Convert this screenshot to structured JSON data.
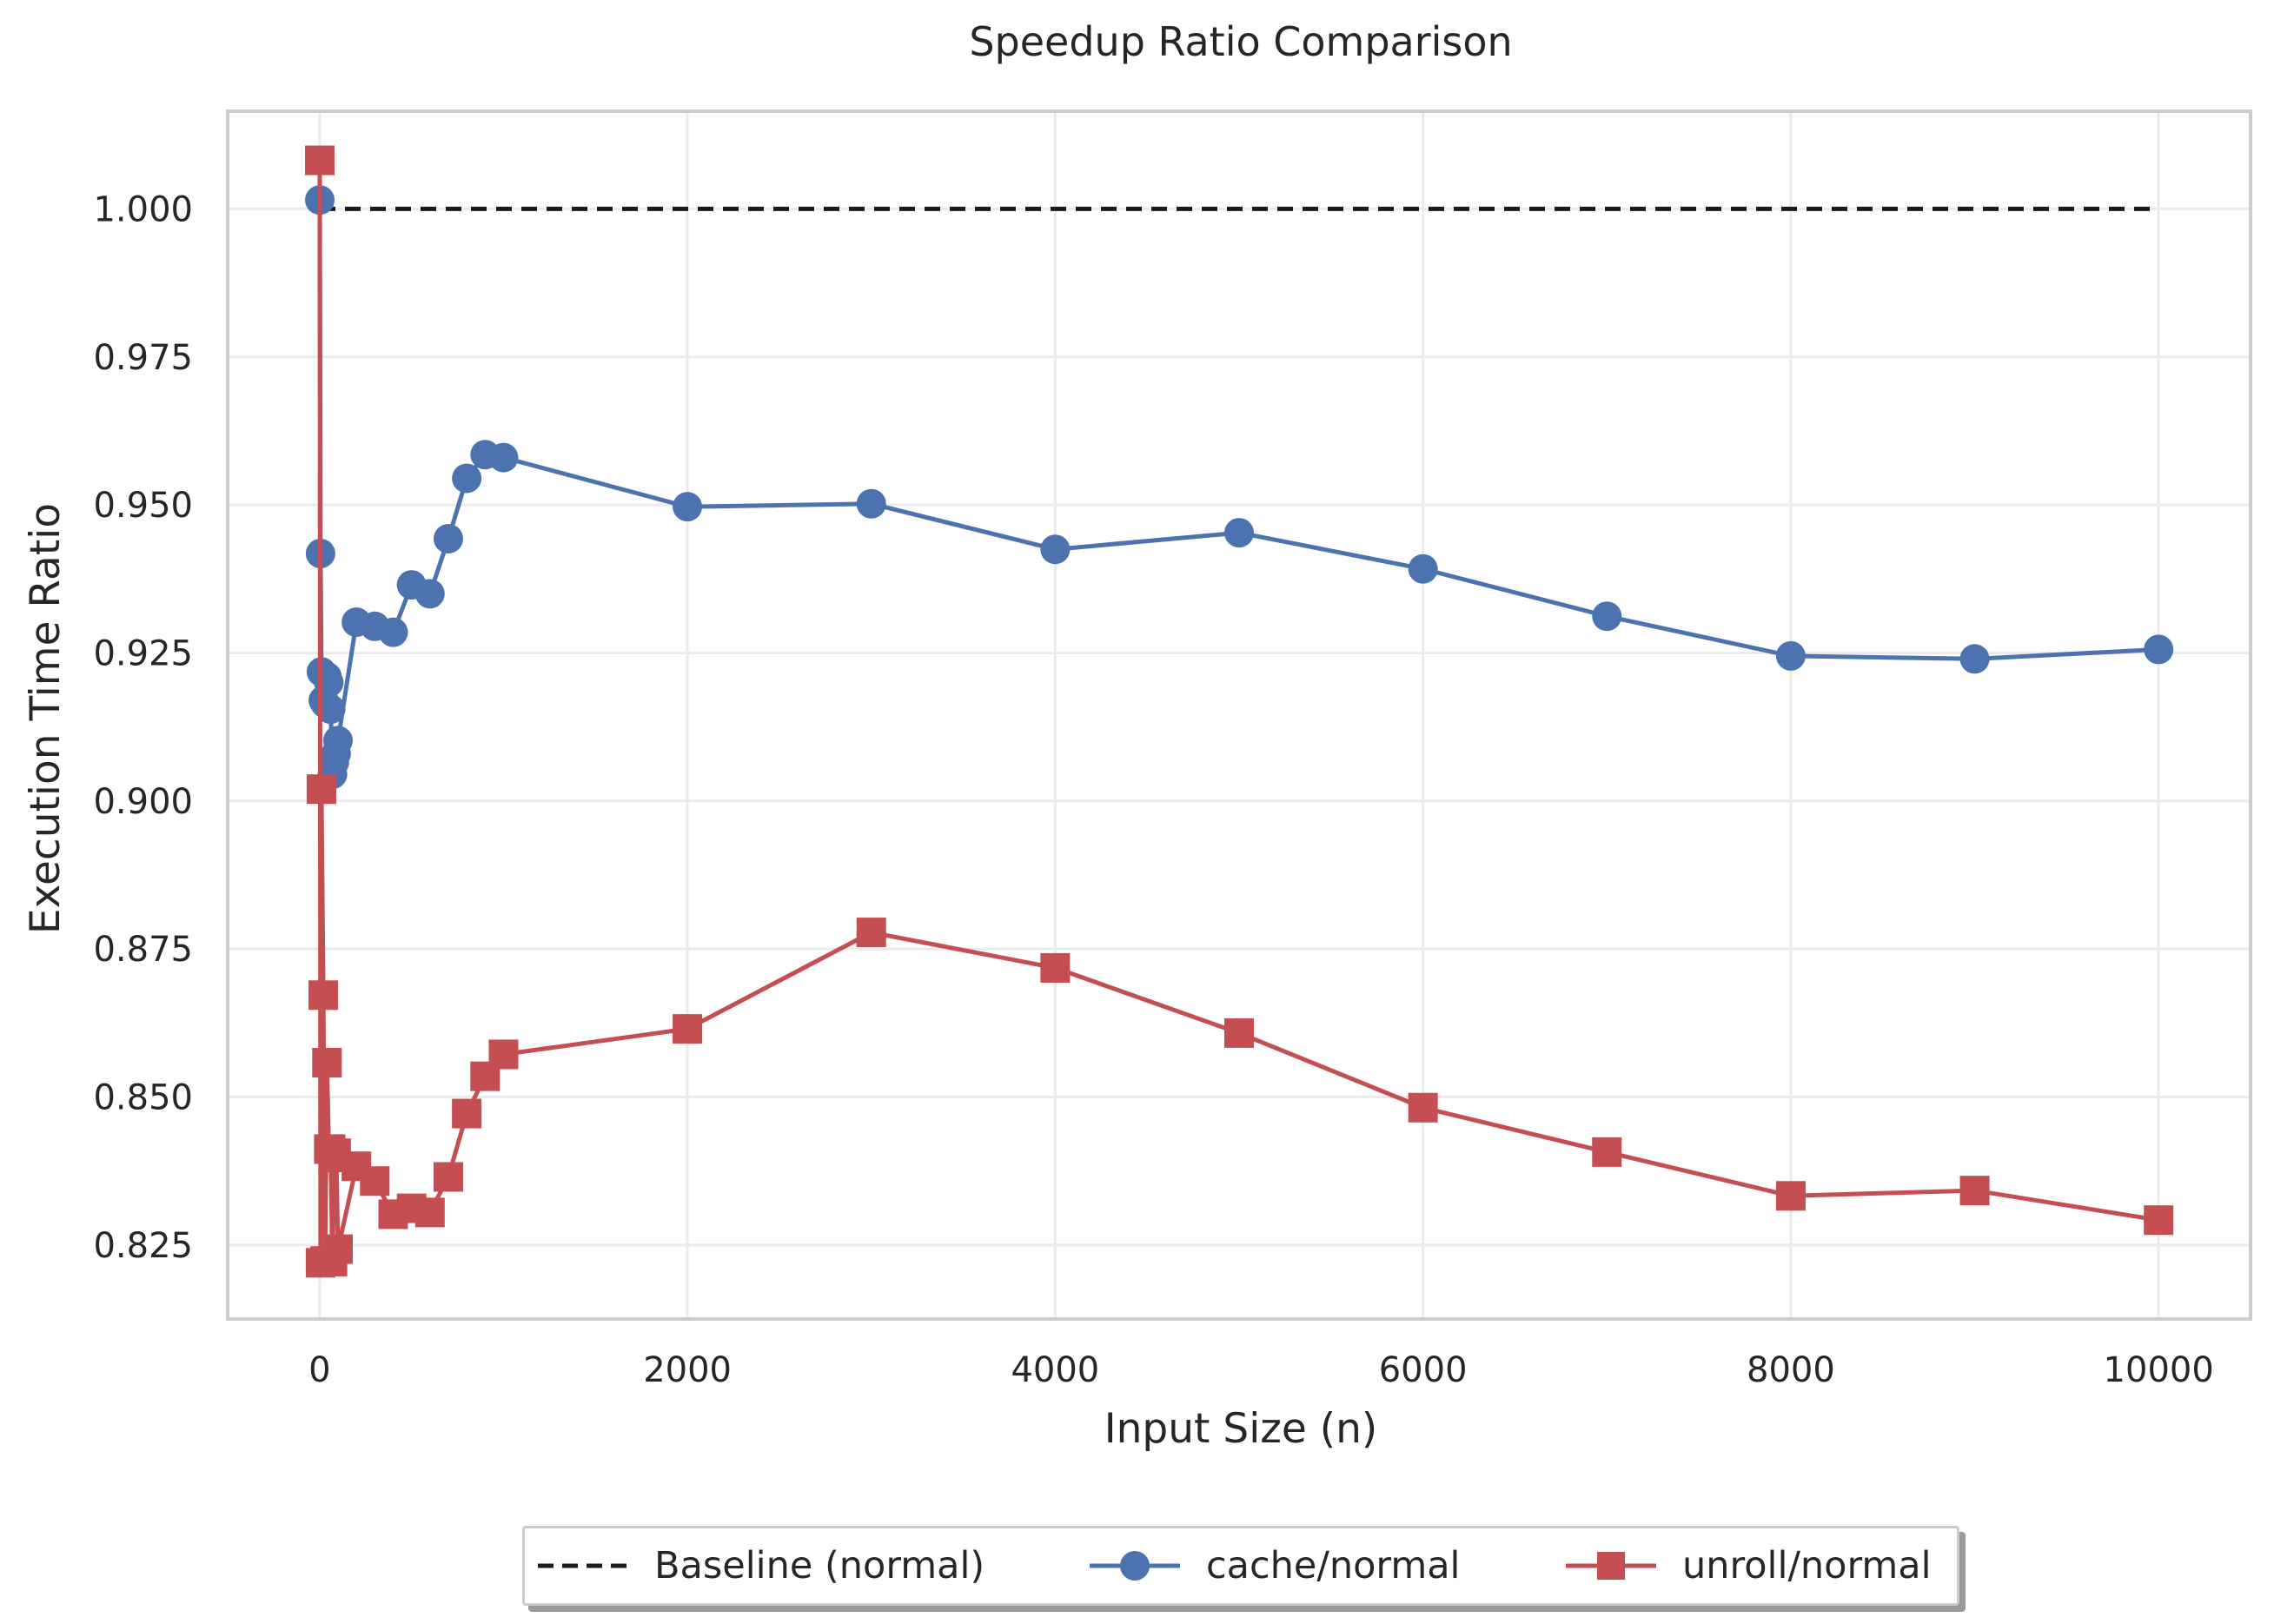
{
  "chart_data": {
    "type": "line",
    "title": "Speedup Ratio Comparison",
    "xlabel": "Input Size (n)",
    "ylabel": "Execution Time Ratio",
    "xlim": [
      -500,
      10500
    ],
    "ylim": [
      0.8125,
      1.0165
    ],
    "x_ticks": [
      0,
      2000,
      4000,
      6000,
      8000,
      10000
    ],
    "y_ticks": [
      0.825,
      0.85,
      0.875,
      0.9,
      0.925,
      0.95,
      0.975,
      1.0
    ],
    "x_tick_labels": [
      "0",
      "2000",
      "4000",
      "6000",
      "8000",
      "10000"
    ],
    "y_tick_labels": [
      "0.825",
      "0.850",
      "0.875",
      "0.900",
      "0.925",
      "0.950",
      "0.975",
      "1.000"
    ],
    "grid": true,
    "legend_position": "bottom-center",
    "series": [
      {
        "name": "Baseline (normal)",
        "color": "#1a1a1a",
        "style": "dashed",
        "marker": "none",
        "x": [
          1,
          10000
        ],
        "y": [
          1.0,
          1.0
        ]
      },
      {
        "name": "cache/normal",
        "color": "#4c72b0",
        "style": "solid",
        "marker": "circle",
        "x": [
          1,
          5,
          10,
          20,
          30,
          40,
          50,
          60,
          70,
          80,
          90,
          100,
          200,
          300,
          400,
          500,
          600,
          700,
          800,
          900,
          1000,
          2000,
          3000,
          4000,
          5000,
          6000,
          7000,
          8000,
          9000,
          10000
        ],
        "y": [
          1.0015,
          0.9418,
          0.9218,
          0.917,
          0.9165,
          0.921,
          0.92,
          0.9155,
          0.9045,
          0.9065,
          0.908,
          0.9102,
          0.9302,
          0.9295,
          0.9285,
          0.9365,
          0.935,
          0.9443,
          0.9545,
          0.9585,
          0.958,
          0.9497,
          0.9502,
          0.9425,
          0.9453,
          0.9392,
          0.9312,
          0.9245,
          0.924,
          0.9256
        ]
      },
      {
        "name": "unroll/normal",
        "color": "#c44e52",
        "style": "solid",
        "marker": "square",
        "x": [
          1,
          5,
          10,
          20,
          30,
          40,
          50,
          60,
          70,
          80,
          90,
          100,
          200,
          300,
          400,
          500,
          600,
          700,
          800,
          900,
          1000,
          2000,
          3000,
          4000,
          5000,
          6000,
          7000,
          8000,
          9000,
          10000
        ],
        "y": [
          1.0082,
          0.822,
          0.902,
          0.8672,
          0.8223,
          0.8558,
          0.8412,
          0.8412,
          0.8222,
          0.8398,
          0.8405,
          0.8243,
          0.8383,
          0.8358,
          0.8302,
          0.8312,
          0.8305,
          0.8365,
          0.8472,
          0.8535,
          0.8572,
          0.8615,
          0.8778,
          0.8718,
          0.8608,
          0.8482,
          0.8407,
          0.8333,
          0.8342,
          0.8292
        ]
      }
    ]
  }
}
